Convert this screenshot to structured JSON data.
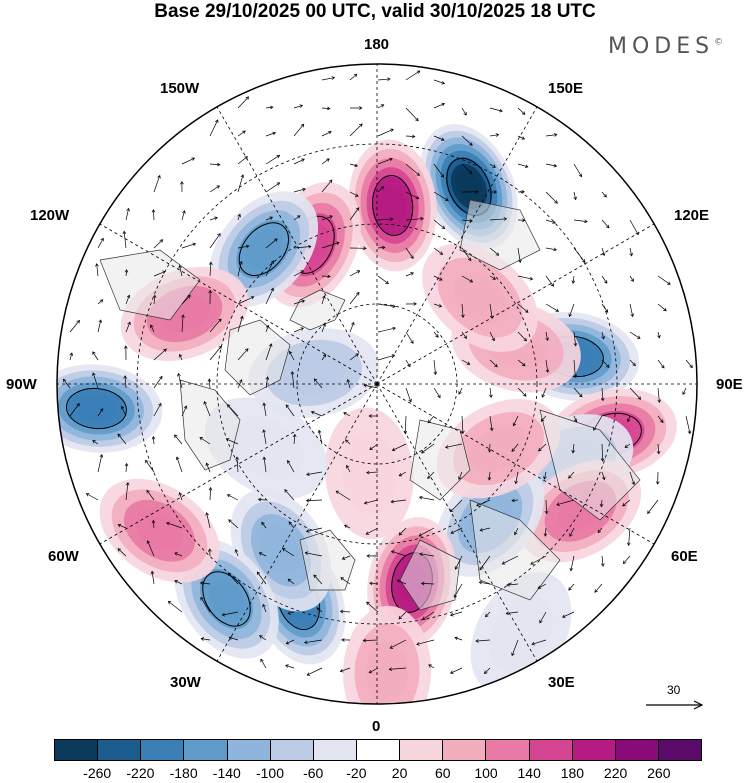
{
  "title": "Base 29/10/2025 00 UTC, valid 30/10/2025 18 UTC",
  "brand": "MODES",
  "brand_mark": "©",
  "longitude_labels": {
    "lon_180": "180",
    "lon_150w": "150W",
    "lon_150e": "150E",
    "lon_120w": "120W",
    "lon_120e": "120E",
    "lon_90w": "90W",
    "lon_90e": "90E",
    "lon_60w": "60W",
    "lon_60e": "60E",
    "lon_30w": "30W",
    "lon_30e": "30E",
    "lon_0": "0"
  },
  "vector_legend": {
    "label": "30",
    "icon": "arrow-right-icon"
  },
  "colorbar": {
    "colors": [
      "#0b3a5c",
      "#1b5c8e",
      "#3a7fb6",
      "#5f9bcb",
      "#8fb5dc",
      "#bccbe6",
      "#e3e5f1",
      "#ffffff",
      "#f8d6de",
      "#f2aebf",
      "#e87aa5",
      "#d64591",
      "#b51b82",
      "#8a0a7a",
      "#5c0a6a"
    ],
    "ticks": [
      "-260",
      "-220",
      "-180",
      "-140",
      "-100",
      "-60",
      "-20",
      "20",
      "60",
      "100",
      "140",
      "180",
      "220",
      "260"
    ]
  },
  "anomalies": [
    {
      "lon": 155,
      "dist": 0.68,
      "value": -260
    },
    {
      "lon": 175,
      "dist": 0.56,
      "value": 210
    },
    {
      "lon": -155,
      "dist": 0.48,
      "value": 140
    },
    {
      "lon": -140,
      "dist": 0.55,
      "value": -150
    },
    {
      "lon": -110,
      "dist": 0.64,
      "value": 100
    },
    {
      "lon": -100,
      "dist": 0.2,
      "value": -60
    },
    {
      "lon": 98,
      "dist": 0.62,
      "value": -180
    },
    {
      "lon": 78,
      "dist": 0.75,
      "value": 140
    },
    {
      "lon": 68,
      "dist": 0.65,
      "value": -60
    },
    {
      "lon": 58,
      "dist": 0.75,
      "value": 100
    },
    {
      "lon": 40,
      "dist": 0.55,
      "value": -100
    },
    {
      "lon": 10,
      "dist": 0.63,
      "value": 200
    },
    {
      "lon": -20,
      "dist": 0.72,
      "value": -180
    },
    {
      "lon": -30,
      "dist": 0.6,
      "value": -100
    },
    {
      "lon": -35,
      "dist": 0.82,
      "value": -140
    },
    {
      "lon": 2,
      "dist": 0.9,
      "value": 60
    },
    {
      "lon": -56,
      "dist": 0.82,
      "value": 120
    },
    {
      "lon": -85,
      "dist": 0.88,
      "value": -180
    },
    {
      "lon": 62,
      "dist": 0.43,
      "value": 80
    },
    {
      "lon": 105,
      "dist": 0.45,
      "value": 60
    },
    {
      "lon": 130,
      "dist": 0.42,
      "value": 60
    },
    {
      "lon": -5,
      "dist": 0.28,
      "value": 40
    },
    {
      "lon": -60,
      "dist": 0.4,
      "value": -40
    },
    {
      "lon": 30,
      "dist": 0.9,
      "value": -40
    }
  ]
}
